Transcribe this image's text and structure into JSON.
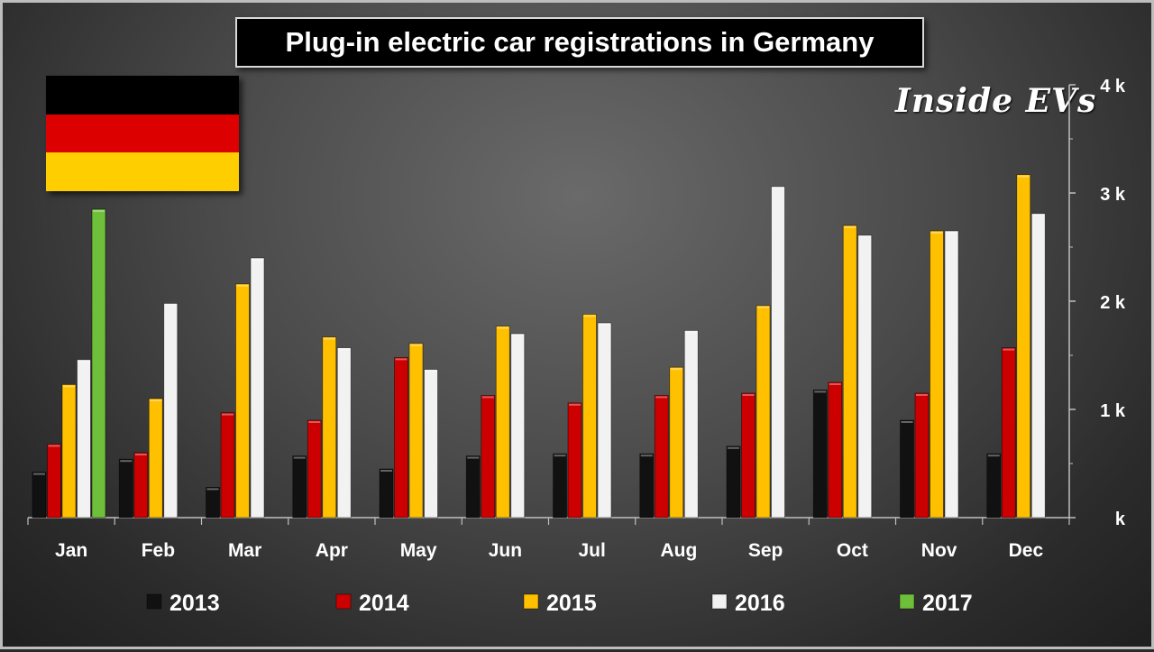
{
  "header": {
    "title": "Plug-in electric car registrations in Germany",
    "brand": "Inside EVs"
  },
  "flag_colors": [
    "#000000",
    "#dd0000",
    "#ffce00"
  ],
  "colors": {
    "2013": "#111111",
    "2014": "#cc0000",
    "2015": "#ffc000",
    "2016": "#f2f2f2",
    "2017": "#6fbf3a"
  },
  "chart_data": {
    "type": "bar",
    "title": "Plug-in electric car registrations in Germany",
    "categories": [
      "Jan",
      "Feb",
      "Mar",
      "Apr",
      "May",
      "Jun",
      "Jul",
      "Aug",
      "Sep",
      "Oct",
      "Nov",
      "Dec"
    ],
    "series": [
      {
        "name": "2013",
        "values": [
          420,
          540,
          280,
          570,
          450,
          570,
          590,
          590,
          660,
          1180,
          900,
          590
        ]
      },
      {
        "name": "2014",
        "values": [
          680,
          600,
          970,
          900,
          1480,
          1130,
          1060,
          1130,
          1150,
          1250,
          1150,
          1570
        ]
      },
      {
        "name": "2015",
        "values": [
          1230,
          1100,
          2160,
          1670,
          1610,
          1770,
          1880,
          1390,
          1960,
          2700,
          2650,
          3170
        ]
      },
      {
        "name": "2016",
        "values": [
          1460,
          1980,
          2400,
          1570,
          1370,
          1700,
          1800,
          1730,
          3060,
          2610,
          2650,
          2810
        ]
      },
      {
        "name": "2017",
        "values": [
          2850,
          null,
          null,
          null,
          null,
          null,
          null,
          null,
          null,
          null,
          null,
          null
        ]
      }
    ],
    "yticks": [
      "k",
      "1 k",
      "2 k",
      "3 k",
      "4 k"
    ],
    "ylim": [
      0,
      4000
    ],
    "xlabel": "",
    "ylabel": "",
    "legend_position": "bottom",
    "grid": false
  }
}
